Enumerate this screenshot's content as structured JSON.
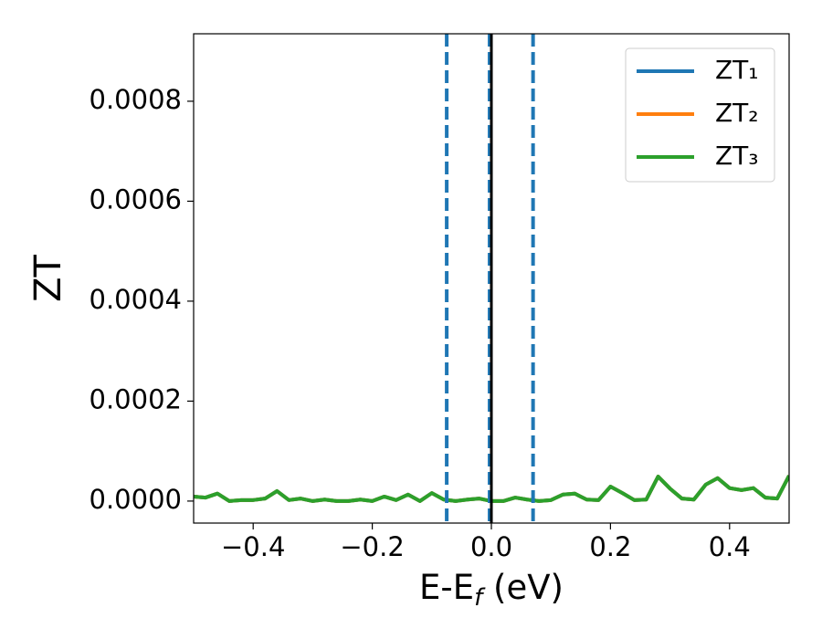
{
  "chart_data": {
    "type": "line",
    "xlabel": [
      "E-E",
      "f",
      " (eV)"
    ],
    "ylabel": "ZT",
    "x": [
      -0.5,
      -0.48,
      -0.46,
      -0.44,
      -0.42,
      -0.4,
      -0.38,
      -0.36,
      -0.34,
      -0.32,
      -0.3,
      -0.28,
      -0.26,
      -0.24,
      -0.22,
      -0.2,
      -0.18,
      -0.16,
      -0.14,
      -0.12,
      -0.1,
      -0.08,
      -0.06,
      -0.04,
      -0.02,
      0,
      0.02,
      0.04,
      0.06,
      0.08,
      0.1,
      0.12,
      0.14,
      0.16,
      0.18,
      0.2,
      0.22,
      0.24,
      0.26,
      0.28,
      0.3,
      0.32,
      0.34,
      0.36,
      0.38,
      0.4,
      0.42,
      0.44,
      0.46,
      0.48,
      0.5
    ],
    "series": [
      {
        "name": "ZT₁",
        "color": "#1f77b4",
        "values": [
          9e-06,
          7e-06,
          1.5e-05,
          0,
          2e-06,
          2e-06,
          5e-06,
          2e-05,
          2e-06,
          5e-06,
          0,
          3e-06,
          0,
          0,
          3e-06,
          0,
          9e-06,
          2e-06,
          1.3e-05,
          0,
          1.6e-05,
          3e-06,
          0,
          3e-06,
          5e-06,
          0,
          0,
          7e-06,
          3e-06,
          0,
          2e-06,
          1.3e-05,
          1.5e-05,
          3e-06,
          2e-06,
          2.9e-05,
          1.6e-05,
          2e-06,
          3e-06,
          4.9e-05,
          2.5e-05,
          5e-06,
          3e-06,
          3.3e-05,
          4.6e-05,
          2.6e-05,
          2.2e-05,
          2.6e-05,
          7e-06,
          5e-06,
          5.1e-05
        ]
      },
      {
        "name": "ZT₂",
        "color": "#ff7f0e",
        "values": [
          9e-06,
          7e-06,
          1.5e-05,
          0,
          2e-06,
          2e-06,
          5e-06,
          2e-05,
          2e-06,
          5e-06,
          0,
          3e-06,
          0,
          0,
          3e-06,
          0,
          9e-06,
          2e-06,
          1.3e-05,
          0,
          1.6e-05,
          3e-06,
          0,
          3e-06,
          5e-06,
          0,
          0,
          7e-06,
          3e-06,
          0,
          2e-06,
          1.3e-05,
          1.5e-05,
          3e-06,
          2e-06,
          2.9e-05,
          1.6e-05,
          2e-06,
          3e-06,
          4.9e-05,
          2.5e-05,
          5e-06,
          3e-06,
          3.3e-05,
          4.6e-05,
          2.6e-05,
          2.2e-05,
          2.6e-05,
          7e-06,
          5e-06,
          5.1e-05
        ]
      },
      {
        "name": "ZT₃",
        "color": "#2ca02c",
        "values": [
          9e-06,
          7e-06,
          1.5e-05,
          0,
          2e-06,
          2e-06,
          5e-06,
          2e-05,
          2e-06,
          5e-06,
          0,
          3e-06,
          0,
          0,
          3e-06,
          0,
          9e-06,
          2e-06,
          1.3e-05,
          0,
          1.6e-05,
          3e-06,
          0,
          3e-06,
          5e-06,
          0,
          0,
          7e-06,
          3e-06,
          0,
          2e-06,
          1.3e-05,
          1.5e-05,
          3e-06,
          2e-06,
          2.9e-05,
          1.6e-05,
          2e-06,
          3e-06,
          4.9e-05,
          2.5e-05,
          5e-06,
          3e-06,
          3.3e-05,
          4.6e-05,
          2.6e-05,
          2.2e-05,
          2.6e-05,
          7e-06,
          5e-06,
          5.1e-05
        ]
      }
    ],
    "vlines": [
      {
        "x": -0.075,
        "color": "#1f77b4",
        "linestyle": "dashed"
      },
      {
        "x": -0.003,
        "color": "#1f77b4",
        "linestyle": "dashed"
      },
      {
        "x": 0.07,
        "color": "#1f77b4",
        "linestyle": "dashed"
      },
      {
        "x": 0,
        "color": "#000000",
        "linestyle": "solid"
      }
    ],
    "xlim": [
      -0.5,
      0.5
    ],
    "xticks": [
      {
        "value": -0.4,
        "label": "−0.4"
      },
      {
        "value": -0.2,
        "label": "−0.2"
      },
      {
        "value": 0,
        "label": "0.0"
      },
      0.2,
      0.4
    ],
    "ylim": [
      -4.4e-05,
      0.000935
    ],
    "yticks": [
      {
        "value": 0,
        "label": "0.0000"
      },
      {
        "value": 0.0002,
        "label": "0.0002"
      },
      {
        "value": 0.0004,
        "label": "0.0004"
      },
      {
        "value": 0.0006,
        "label": "0.0006"
      },
      {
        "value": 0.0008,
        "label": "0.0008"
      }
    ],
    "legend": "upper right",
    "grid": false
  }
}
